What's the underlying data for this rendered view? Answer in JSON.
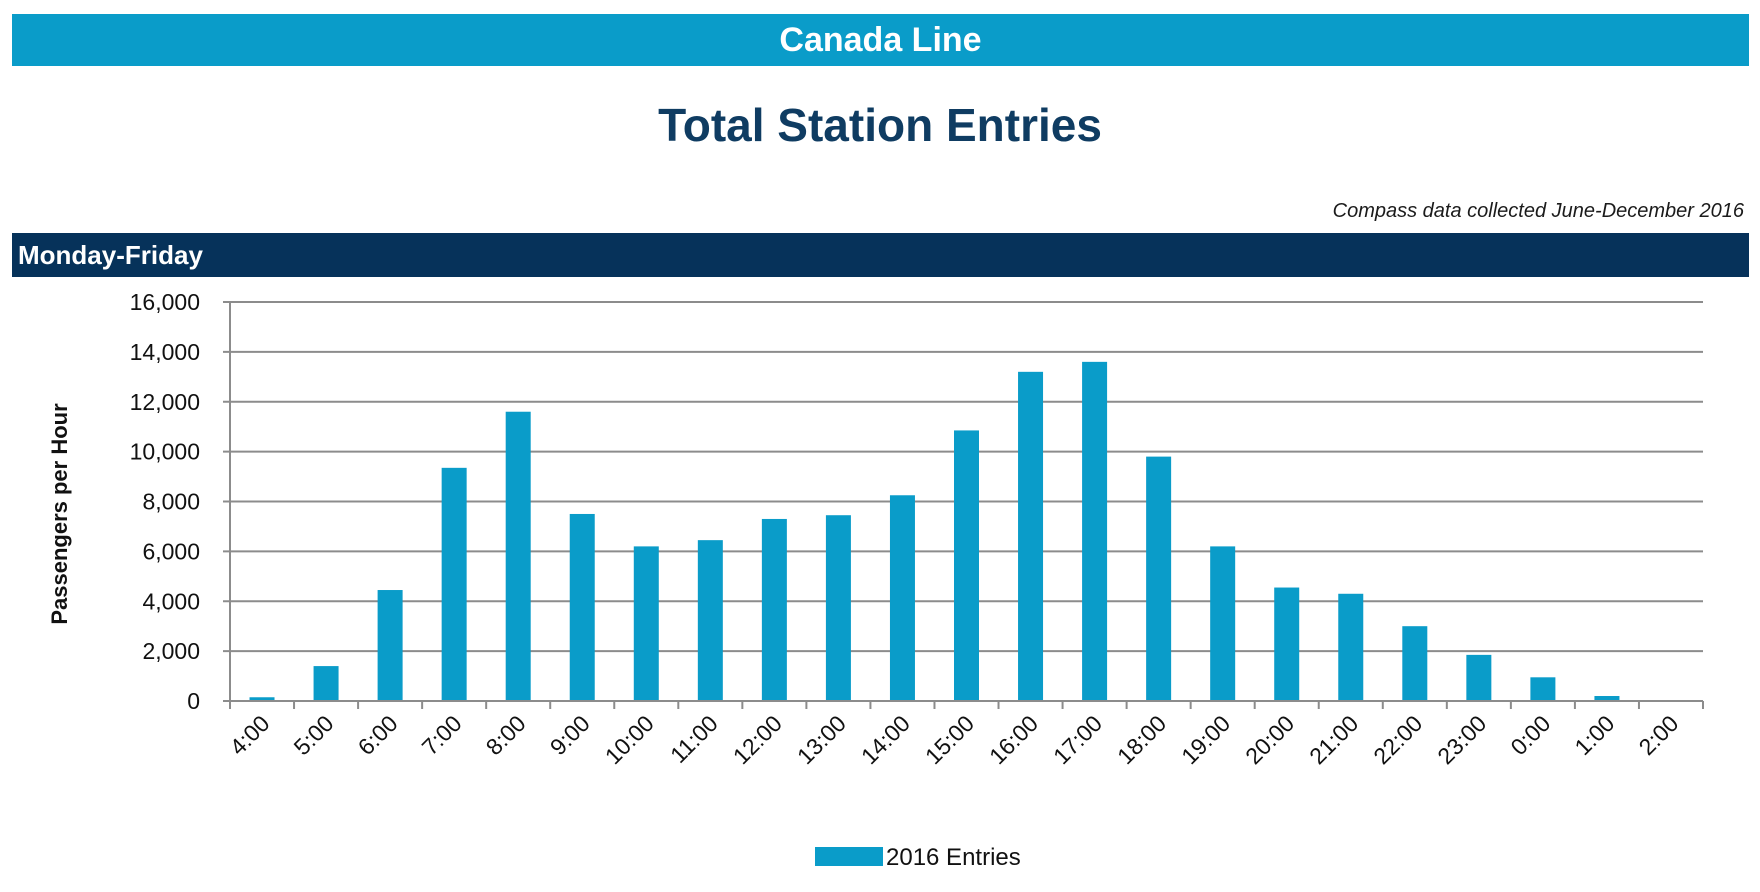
{
  "header": {
    "banner_title": "Canada Line",
    "page_title": "Total Station Entries",
    "source_note": "Compass data collected June-December 2016",
    "section_label": "Monday-Friday"
  },
  "colors": {
    "banner": "#0a9cc9",
    "title": "#0f3c62",
    "section_bar": "#06325a",
    "bar": "#0a9cc9",
    "grid": "#8c8c8c"
  },
  "chart_data": {
    "type": "bar",
    "title": "",
    "xlabel": "",
    "ylabel": "Passengers per Hour",
    "ylim": [
      0,
      16000
    ],
    "yticks": [
      0,
      2000,
      4000,
      6000,
      8000,
      10000,
      12000,
      14000,
      16000
    ],
    "ytick_labels": [
      "0",
      "2,000",
      "4,000",
      "6,000",
      "8,000",
      "10,000",
      "12,000",
      "14,000",
      "16,000"
    ],
    "grid": true,
    "legend_position": "bottom",
    "categories": [
      "4:00",
      "5:00",
      "6:00",
      "7:00",
      "8:00",
      "9:00",
      "10:00",
      "11:00",
      "12:00",
      "13:00",
      "14:00",
      "15:00",
      "16:00",
      "17:00",
      "18:00",
      "19:00",
      "20:00",
      "21:00",
      "22:00",
      "23:00",
      "0:00",
      "1:00",
      "2:00"
    ],
    "series": [
      {
        "name": "2016 Entries",
        "values": [
          150,
          1400,
          4450,
          9350,
          11600,
          7500,
          6200,
          6450,
          7300,
          7450,
          8250,
          10850,
          13200,
          13600,
          9800,
          6200,
          4550,
          4300,
          3000,
          1850,
          950,
          200,
          0
        ]
      }
    ]
  }
}
